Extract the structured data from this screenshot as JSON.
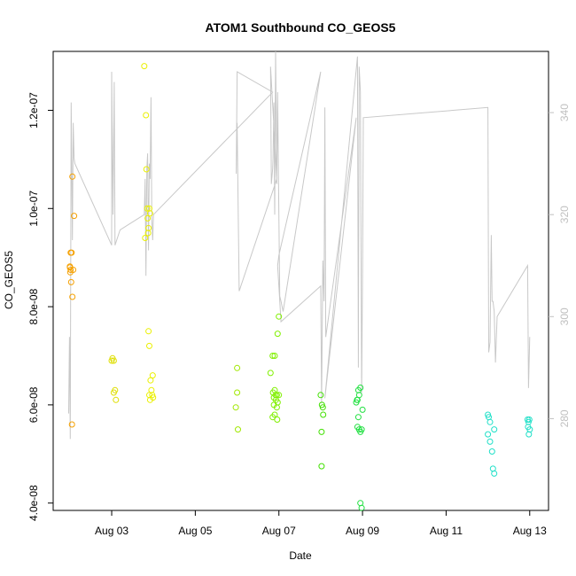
{
  "chart_data": {
    "type": "scatter",
    "title": "ATOM1 Southbound CO_GEOS5",
    "xlabel": "Date",
    "ylabel": "CO_GEOS5",
    "x_unit": "days since Aug 01",
    "xlim": [
      1.6,
      13.45
    ],
    "ylim": [
      3.85e-08,
      1.32e-07
    ],
    "y2lim": [
      262.0,
      352.0
    ],
    "x_ticks": [
      {
        "value": 3,
        "label": "Aug 03"
      },
      {
        "value": 5,
        "label": "Aug 05"
      },
      {
        "value": 7,
        "label": "Aug 07"
      },
      {
        "value": 9,
        "label": "Aug 09"
      },
      {
        "value": 11,
        "label": "Aug 11"
      },
      {
        "value": 13,
        "label": "Aug 13"
      }
    ],
    "y_ticks": [
      {
        "value": 4e-08,
        "label": "4.0e-08"
      },
      {
        "value": 6e-08,
        "label": "6.0e-08"
      },
      {
        "value": 8e-08,
        "label": "8.0e-08"
      },
      {
        "value": 1e-07,
        "label": "1.0e-07"
      },
      {
        "value": 1.2e-07,
        "label": "1.2e-07"
      }
    ],
    "y2_ticks": [
      {
        "value": 280,
        "label": "280"
      },
      {
        "value": 300,
        "label": "300"
      },
      {
        "value": 320,
        "label": "320"
      },
      {
        "value": 340,
        "label": "340"
      }
    ],
    "colors": {
      "line": "#c8c8c8",
      "right_axis": "#c0c0c0",
      "axis": "#000000"
    },
    "point_groups": [
      {
        "color": "#f5a000",
        "points": [
          [
            2.0,
            8.8e-08
          ],
          [
            2.02,
            8.75e-08
          ],
          [
            2.04,
            9.1e-08
          ],
          [
            2.03,
            8.5e-08
          ],
          [
            2.06,
            8.2e-08
          ],
          [
            2.08,
            8.75e-08
          ],
          [
            2.05,
            5.6e-08
          ],
          [
            2.06,
            1.065e-07
          ],
          [
            2.1,
            9.85e-08
          ],
          [
            2.01,
            8.7e-08
          ],
          [
            2.02,
            9.1e-08
          ],
          [
            2.0,
            8.82e-08
          ]
        ]
      },
      {
        "color": "#dede00",
        "points": [
          [
            3.0,
            6.9e-08
          ],
          [
            3.02,
            6.95e-08
          ],
          [
            3.05,
            6.25e-08
          ],
          [
            3.08,
            6.3e-08
          ],
          [
            3.1,
            6.1e-08
          ],
          [
            3.05,
            6.9e-08
          ]
        ]
      },
      {
        "color": "#eaf000",
        "points": [
          [
            3.78,
            1.29e-07
          ],
          [
            3.82,
            1.19e-07
          ],
          [
            3.83,
            1.08e-07
          ],
          [
            3.85,
            1e-07
          ],
          [
            3.86,
            9.8e-08
          ],
          [
            3.87,
            9.5e-08
          ],
          [
            3.88,
            9.6e-08
          ],
          [
            3.9,
            1e-07
          ],
          [
            3.92,
            9.9e-08
          ],
          [
            3.88,
            7.5e-08
          ],
          [
            3.9,
            7.2e-08
          ],
          [
            3.93,
            6.5e-08
          ],
          [
            3.95,
            6.3e-08
          ],
          [
            3.97,
            6.2e-08
          ],
          [
            3.92,
            6.1e-08
          ],
          [
            3.9,
            6.2e-08
          ],
          [
            3.98,
            6.6e-08
          ],
          [
            3.99,
            6.15e-08
          ],
          [
            3.8,
            9.4e-08
          ]
        ]
      },
      {
        "color": "#a0e800",
        "points": [
          [
            6.0,
            6.75e-08
          ],
          [
            6.0,
            6.25e-08
          ],
          [
            5.97,
            5.95e-08
          ],
          [
            6.02,
            5.5e-08
          ]
        ]
      },
      {
        "color": "#80f000",
        "points": [
          [
            6.8,
            6.65e-08
          ],
          [
            6.85,
            7e-08
          ],
          [
            6.9,
            7e-08
          ],
          [
            6.9,
            6.3e-08
          ],
          [
            6.92,
            6.2e-08
          ],
          [
            6.95,
            6.2e-08
          ],
          [
            6.93,
            6.1e-08
          ],
          [
            6.97,
            6.05e-08
          ],
          [
            7.0,
            6.2e-08
          ],
          [
            6.97,
            7.45e-08
          ],
          [
            7.0,
            7.8e-08
          ],
          [
            6.88,
            6e-08
          ],
          [
            6.9,
            5.8e-08
          ],
          [
            6.95,
            5.95e-08
          ],
          [
            6.96,
            5.7e-08
          ],
          [
            6.85,
            5.75e-08
          ],
          [
            6.86,
            6.25e-08
          ],
          [
            6.88,
            6.15e-08
          ]
        ]
      },
      {
        "color": "#40e000",
        "points": [
          [
            8.0,
            6.2e-08
          ],
          [
            8.02,
            5.45e-08
          ],
          [
            8.05,
            5.95e-08
          ],
          [
            8.06,
            5.8e-08
          ],
          [
            8.03,
            6e-08
          ],
          [
            8.02,
            4.75e-08
          ]
        ]
      },
      {
        "color": "#20e040",
        "points": [
          [
            8.85,
            6.05e-08
          ],
          [
            8.88,
            6.1e-08
          ],
          [
            8.9,
            6.3e-08
          ],
          [
            8.92,
            6.2e-08
          ],
          [
            8.95,
            6.35e-08
          ],
          [
            8.9,
            5.75e-08
          ],
          [
            8.92,
            5.5e-08
          ],
          [
            8.95,
            5.45e-08
          ],
          [
            8.98,
            5.5e-08
          ],
          [
            9.0,
            5.9e-08
          ],
          [
            8.88,
            5.55e-08
          ],
          [
            8.87,
            6.1e-08
          ],
          [
            8.95,
            4e-08
          ],
          [
            8.98,
            3.9e-08
          ]
        ]
      },
      {
        "color": "#20e0c8",
        "points": [
          [
            12.0,
            5.8e-08
          ],
          [
            12.02,
            5.75e-08
          ],
          [
            12.05,
            5.65e-08
          ],
          [
            12.0,
            5.4e-08
          ],
          [
            12.05,
            5.25e-08
          ],
          [
            12.1,
            5.05e-08
          ],
          [
            12.12,
            4.7e-08
          ],
          [
            12.15,
            4.6e-08
          ],
          [
            12.15,
            5.5e-08
          ],
          [
            12.95,
            5.7e-08
          ],
          [
            12.97,
            5.65e-08
          ],
          [
            13.0,
            5.5e-08
          ],
          [
            12.98,
            5.4e-08
          ],
          [
            12.96,
            5.55e-08
          ],
          [
            12.99,
            5.7e-08
          ]
        ]
      }
    ],
    "line_series_right_axis": [
      [
        1.97,
        281
      ],
      [
        1.99,
        296
      ],
      [
        2.01,
        276
      ],
      [
        2.03,
        342
      ],
      [
        2.06,
        315
      ],
      [
        2.08,
        338
      ],
      [
        2.1,
        331
      ],
      [
        2.12,
        330
      ],
      [
        3.0,
        314
      ],
      [
        3.0,
        348
      ],
      [
        3.03,
        320
      ],
      [
        3.06,
        346
      ],
      [
        3.08,
        314
      ],
      [
        3.2,
        317
      ],
      [
        3.78,
        320
      ],
      [
        3.8,
        327
      ],
      [
        3.82,
        308
      ],
      [
        3.84,
        329
      ],
      [
        3.86,
        332
      ],
      [
        3.88,
        313
      ],
      [
        3.9,
        330
      ],
      [
        3.92,
        327
      ],
      [
        3.94,
        343
      ],
      [
        3.96,
        319
      ],
      [
        3.98,
        315
      ],
      [
        4.0,
        320
      ],
      [
        6.85,
        344
      ],
      [
        6.0,
        348
      ],
      [
        5.98,
        328
      ],
      [
        6.0,
        338
      ],
      [
        6.05,
        305
      ],
      [
        6.95,
        327
      ],
      [
        6.8,
        349
      ],
      [
        6.82,
        326
      ],
      [
        6.85,
        329
      ],
      [
        6.86,
        331
      ],
      [
        6.88,
        342
      ],
      [
        6.9,
        320
      ],
      [
        6.92,
        352
      ],
      [
        6.95,
        326
      ],
      [
        6.97,
        344
      ],
      [
        7.0,
        320
      ],
      [
        7.02,
        304
      ],
      [
        7.05,
        303
      ],
      [
        7.1,
        301
      ],
      [
        8.0,
        348
      ],
      [
        7.0,
        312
      ],
      [
        6.97,
        310
      ],
      [
        7.05,
        299
      ],
      [
        8.0,
        306
      ],
      [
        8.02,
        283
      ],
      [
        8.05,
        311
      ],
      [
        8.08,
        303
      ],
      [
        8.1,
        341
      ],
      [
        8.12,
        296
      ],
      [
        8.85,
        339
      ],
      [
        8.1,
        284
      ],
      [
        8.88,
        351
      ],
      [
        8.9,
        290
      ],
      [
        8.92,
        349
      ],
      [
        8.95,
        344
      ],
      [
        8.98,
        285
      ],
      [
        9.0,
        308
      ],
      [
        9.02,
        339
      ],
      [
        12.0,
        341
      ],
      [
        12.02,
        293
      ],
      [
        12.05,
        295
      ],
      [
        12.08,
        316
      ],
      [
        12.1,
        303
      ],
      [
        12.12,
        303
      ],
      [
        12.15,
        301
      ],
      [
        12.18,
        291
      ],
      [
        12.22,
        300
      ],
      [
        12.95,
        310
      ],
      [
        12.97,
        286
      ],
      [
        13.0,
        296
      ]
    ]
  }
}
